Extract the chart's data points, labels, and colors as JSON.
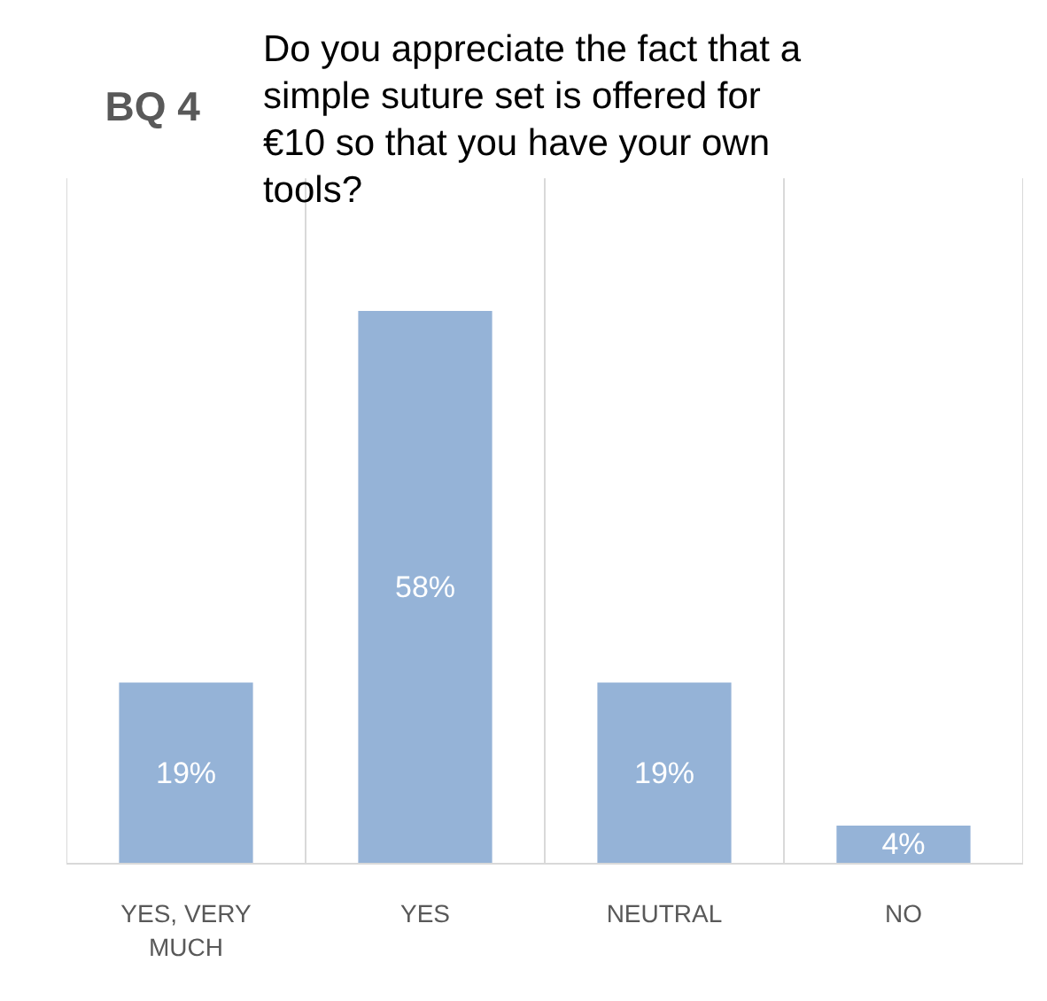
{
  "chart_data": {
    "type": "bar",
    "title": "BQ 4",
    "subtitle": "Do you appreciate the fact that a simple suture set is offered for €10 so that you have your own tools?",
    "categories": [
      "YES, VERY MUCH",
      "YES",
      "NEUTRAL",
      "NO"
    ],
    "values": [
      19,
      58,
      19,
      4
    ],
    "value_labels": [
      "19%",
      "58%",
      "19%",
      "4%"
    ],
    "color": "#95b3d7",
    "grid": "x"
  }
}
